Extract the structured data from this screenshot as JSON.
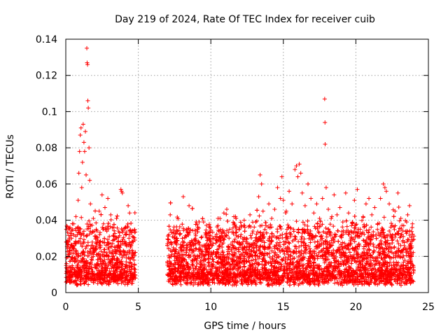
{
  "chart_data": {
    "type": "scatter",
    "title": "Day 219 of 2024, Rate Of TEC Index for receiver cuib",
    "xlabel": "GPS time / hours",
    "ylabel": "ROTI / TECUs",
    "xlim": [
      0,
      25
    ],
    "ylim": [
      0,
      0.14
    ],
    "xticks": [
      "0",
      "5",
      "10",
      "15",
      "20",
      "25"
    ],
    "yticks": [
      "0",
      "0.02",
      "0.04",
      "0.06",
      "0.08",
      "0.1",
      "0.12",
      "0.14"
    ],
    "grid": true,
    "marker": "+",
    "color": "#ff0000",
    "data_gap_hours": [
      4.8,
      7.0
    ],
    "series": [
      {
        "name": "ROTI",
        "points": [
          [
            0.05,
            0.016
          ],
          [
            0.1,
            0.028
          ],
          [
            0.15,
            0.012
          ],
          [
            0.2,
            0.035
          ],
          [
            0.25,
            0.01
          ],
          [
            0.3,
            0.022
          ],
          [
            0.35,
            0.018
          ],
          [
            0.4,
            0.03
          ],
          [
            0.45,
            0.014
          ],
          [
            0.5,
            0.025
          ],
          [
            0.55,
            0.038
          ],
          [
            0.6,
            0.019
          ],
          [
            0.65,
            0.011
          ],
          [
            0.7,
            0.042
          ],
          [
            0.75,
            0.021
          ],
          [
            0.8,
            0.032
          ],
          [
            0.85,
            0.051
          ],
          [
            0.9,
            0.066
          ],
          [
            0.95,
            0.078
          ],
          [
            1.0,
            0.087
          ],
          [
            1.05,
            0.091
          ],
          [
            1.1,
            0.058
          ],
          [
            1.15,
            0.072
          ],
          [
            1.2,
            0.093
          ],
          [
            1.25,
            0.083
          ],
          [
            1.3,
            0.078
          ],
          [
            1.35,
            0.089
          ],
          [
            1.4,
            0.065
          ],
          [
            1.45,
            0.135
          ],
          [
            1.47,
            0.127
          ],
          [
            1.5,
            0.126
          ],
          [
            1.52,
            0.106
          ],
          [
            1.55,
            0.102
          ],
          [
            1.6,
            0.08
          ],
          [
            1.65,
            0.062
          ],
          [
            1.7,
            0.049
          ],
          [
            1.8,
            0.033
          ],
          [
            1.9,
            0.041
          ],
          [
            2.0,
            0.024
          ],
          [
            2.1,
            0.035
          ],
          [
            2.2,
            0.029
          ],
          [
            2.3,
            0.045
          ],
          [
            2.4,
            0.026
          ],
          [
            2.5,
            0.054
          ],
          [
            2.6,
            0.038
          ],
          [
            2.7,
            0.047
          ],
          [
            2.8,
            0.022
          ],
          [
            2.9,
            0.052
          ],
          [
            3.0,
            0.031
          ],
          [
            3.1,
            0.043
          ],
          [
            3.2,
            0.019
          ],
          [
            3.3,
            0.036
          ],
          [
            3.4,
            0.025
          ],
          [
            3.5,
            0.041
          ],
          [
            3.6,
            0.028
          ],
          [
            3.7,
            0.033
          ],
          [
            3.8,
            0.057
          ],
          [
            3.85,
            0.056
          ],
          [
            3.9,
            0.055
          ],
          [
            4.0,
            0.027
          ],
          [
            4.1,
            0.032
          ],
          [
            4.2,
            0.021
          ],
          [
            4.3,
            0.048
          ],
          [
            4.4,
            0.044
          ],
          [
            4.5,
            0.026
          ],
          [
            4.6,
            0.031
          ],
          [
            4.7,
            0.018
          ],
          [
            7.1,
            0.032
          ],
          [
            7.2,
            0.043
          ],
          [
            7.3,
            0.021
          ],
          [
            7.5,
            0.028
          ],
          [
            7.7,
            0.034
          ],
          [
            7.9,
            0.025
          ],
          [
            8.1,
            0.053
          ],
          [
            8.3,
            0.031
          ],
          [
            8.5,
            0.048
          ],
          [
            8.7,
            0.022
          ],
          [
            8.9,
            0.029
          ],
          [
            9.1,
            0.036
          ],
          [
            9.3,
            0.024
          ],
          [
            9.5,
            0.039
          ],
          [
            9.7,
            0.027
          ],
          [
            9.9,
            0.033
          ],
          [
            10.1,
            0.026
          ],
          [
            10.3,
            0.031
          ],
          [
            10.5,
            0.041
          ],
          [
            10.7,
            0.029
          ],
          [
            10.9,
            0.044
          ],
          [
            11.1,
            0.046
          ],
          [
            11.3,
            0.035
          ],
          [
            11.5,
            0.028
          ],
          [
            11.7,
            0.042
          ],
          [
            11.9,
            0.031
          ],
          [
            12.1,
            0.037
          ],
          [
            12.3,
            0.04
          ],
          [
            12.5,
            0.027
          ],
          [
            12.7,
            0.043
          ],
          [
            12.9,
            0.034
          ],
          [
            13.1,
            0.039
          ],
          [
            13.3,
            0.053
          ],
          [
            13.4,
            0.065
          ],
          [
            13.5,
            0.06
          ],
          [
            13.6,
            0.045
          ],
          [
            13.8,
            0.037
          ],
          [
            14.0,
            0.049
          ],
          [
            14.2,
            0.041
          ],
          [
            14.4,
            0.046
          ],
          [
            14.6,
            0.058
          ],
          [
            14.8,
            0.052
          ],
          [
            14.9,
            0.064
          ],
          [
            15.0,
            0.051
          ],
          [
            15.2,
            0.045
          ],
          [
            15.4,
            0.056
          ],
          [
            15.6,
            0.049
          ],
          [
            15.8,
            0.068
          ],
          [
            15.9,
            0.07
          ],
          [
            16.0,
            0.064
          ],
          [
            16.1,
            0.071
          ],
          [
            16.2,
            0.066
          ],
          [
            16.3,
            0.055
          ],
          [
            16.5,
            0.048
          ],
          [
            16.7,
            0.06
          ],
          [
            16.9,
            0.052
          ],
          [
            17.1,
            0.044
          ],
          [
            17.3,
            0.049
          ],
          [
            17.5,
            0.041
          ],
          [
            17.7,
            0.052
          ],
          [
            17.85,
            0.107
          ],
          [
            17.87,
            0.094
          ],
          [
            17.88,
            0.082
          ],
          [
            17.95,
            0.058
          ],
          [
            18.1,
            0.046
          ],
          [
            18.3,
            0.041
          ],
          [
            18.5,
            0.054
          ],
          [
            18.7,
            0.043
          ],
          [
            18.9,
            0.047
          ],
          [
            19.1,
            0.039
          ],
          [
            19.3,
            0.055
          ],
          [
            19.5,
            0.044
          ],
          [
            19.7,
            0.037
          ],
          [
            19.9,
            0.051
          ],
          [
            20.1,
            0.057
          ],
          [
            20.3,
            0.035
          ],
          [
            20.5,
            0.042
          ],
          [
            20.7,
            0.049
          ],
          [
            20.9,
            0.052
          ],
          [
            21.1,
            0.043
          ],
          [
            21.3,
            0.047
          ],
          [
            21.5,
            0.038
          ],
          [
            21.7,
            0.052
          ],
          [
            21.9,
            0.06
          ],
          [
            22.0,
            0.058
          ],
          [
            22.1,
            0.056
          ],
          [
            22.3,
            0.049
          ],
          [
            22.5,
            0.037
          ],
          [
            22.7,
            0.045
          ],
          [
            22.9,
            0.055
          ],
          [
            23.1,
            0.041
          ],
          [
            23.3,
            0.037
          ],
          [
            23.5,
            0.039
          ],
          [
            23.7,
            0.048
          ],
          [
            23.9,
            0.038
          ]
        ]
      }
    ]
  }
}
